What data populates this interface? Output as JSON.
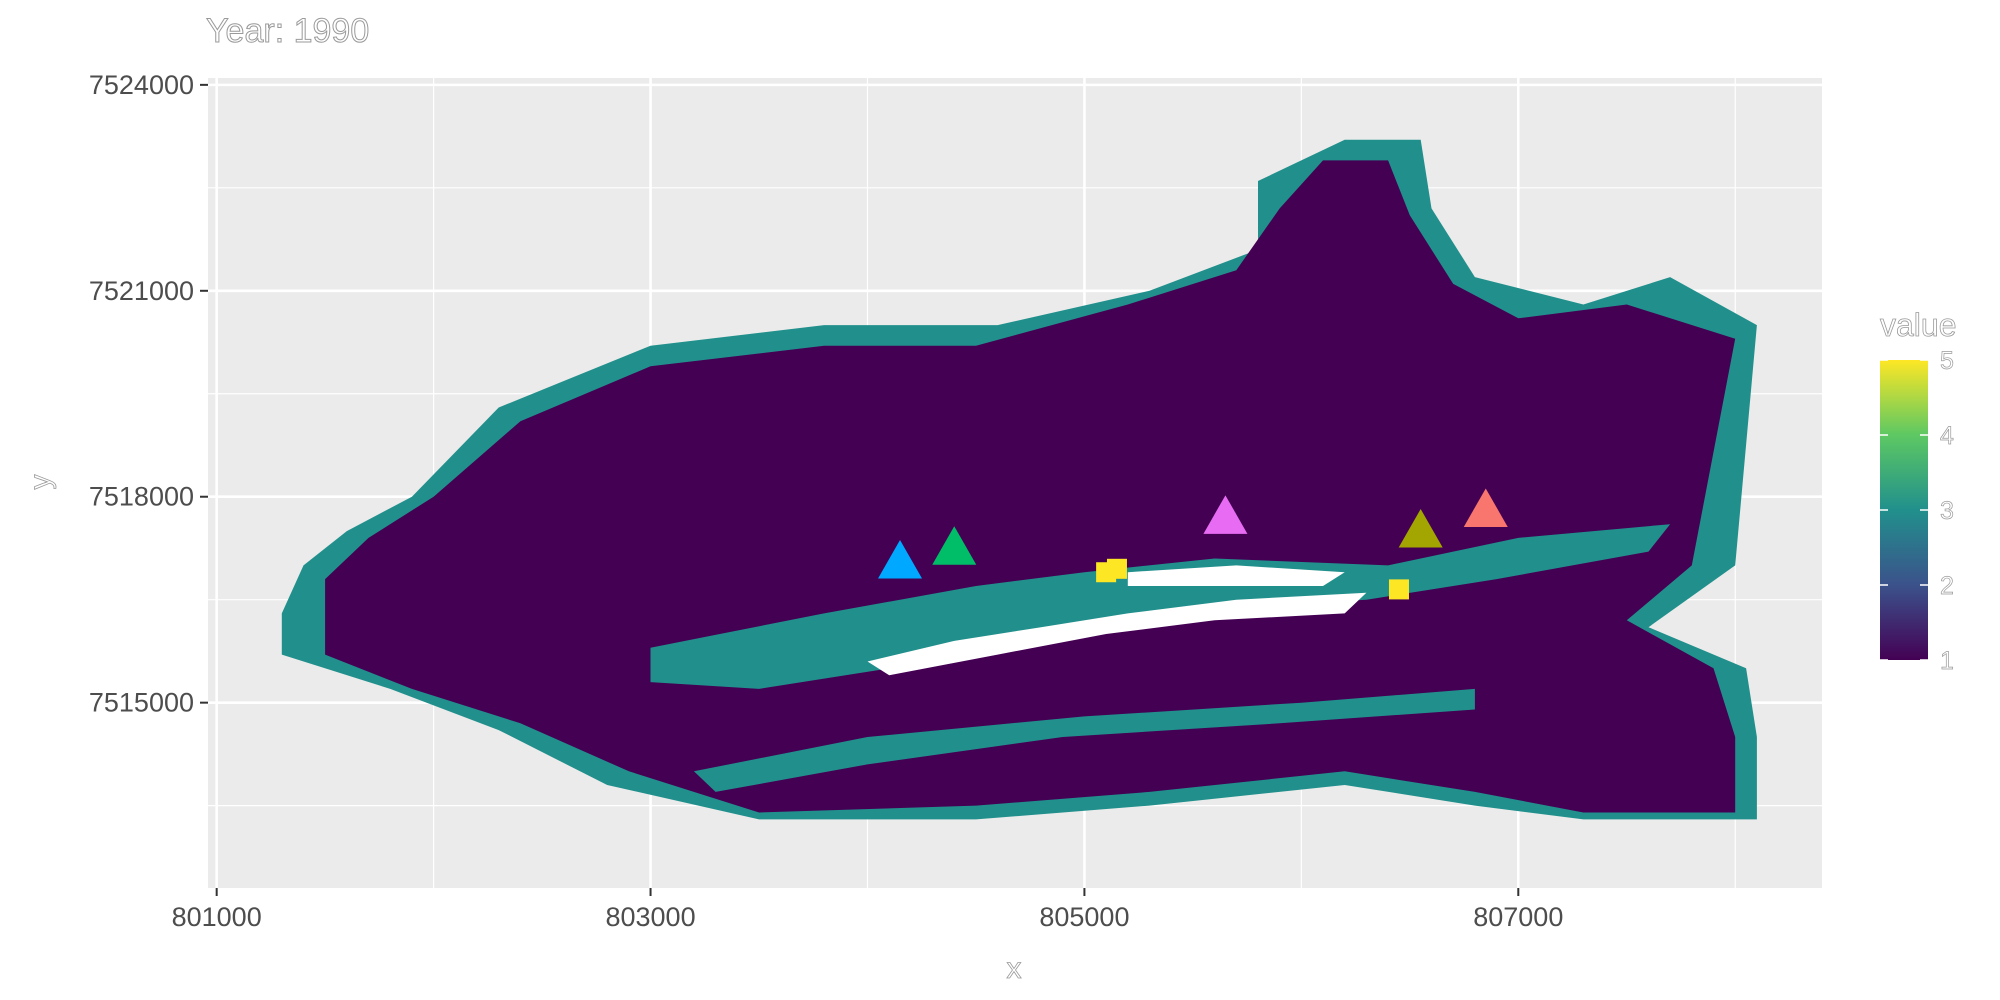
{
  "chart_data": {
    "type": "heatmap",
    "title": "Year: 1990",
    "xlabel": "x",
    "ylabel": "y",
    "xlim": [
      800960,
      808400
    ],
    "ylim": [
      7512300,
      7524100
    ],
    "x_ticks": [
      801000,
      803000,
      805000,
      807000
    ],
    "x_minor": [
      802000,
      804000,
      806000,
      808000
    ],
    "y_ticks": [
      7515000,
      7518000,
      7521000,
      7524000
    ],
    "y_minor": [
      7513500,
      7516500,
      7519500,
      7522500
    ],
    "grid": true,
    "colorscale": {
      "title": "value",
      "min": 1,
      "max": 5,
      "ticks": [
        1,
        2,
        3,
        4,
        5
      ],
      "palette": "viridis",
      "stops": [
        "#440154",
        "#3B528B",
        "#21908C",
        "#5DC863",
        "#FDE725"
      ]
    },
    "legend_position": "right",
    "regions": [
      {
        "value": 3,
        "note": "outer band",
        "polygon": [
          [
            801300,
            7515700
          ],
          [
            801800,
            7515200
          ],
          [
            802300,
            7514600
          ],
          [
            802800,
            7513800
          ],
          [
            803500,
            7513300
          ],
          [
            804500,
            7513300
          ],
          [
            805300,
            7513500
          ],
          [
            806200,
            7513800
          ],
          [
            806800,
            7513500
          ],
          [
            807300,
            7513300
          ],
          [
            808100,
            7513300
          ],
          [
            808100,
            7514500
          ],
          [
            808050,
            7515500
          ],
          [
            807600,
            7516100
          ],
          [
            808000,
            7517000
          ],
          [
            808100,
            7520500
          ],
          [
            807700,
            7521200
          ],
          [
            807300,
            7520800
          ],
          [
            806800,
            7521200
          ],
          [
            806600,
            7522200
          ],
          [
            806550,
            7523200
          ],
          [
            806200,
            7523200
          ],
          [
            805800,
            7522600
          ],
          [
            805800,
            7521600
          ],
          [
            805300,
            7521000
          ],
          [
            804600,
            7520500
          ],
          [
            803800,
            7520500
          ],
          [
            803000,
            7520200
          ],
          [
            802300,
            7519300
          ],
          [
            801900,
            7518000
          ],
          [
            801600,
            7517500
          ],
          [
            801400,
            7517000
          ],
          [
            801300,
            7516300
          ]
        ]
      },
      {
        "value": 1,
        "note": "main body",
        "polygon": [
          [
            801500,
            7515700
          ],
          [
            801900,
            7515200
          ],
          [
            802400,
            7514700
          ],
          [
            802900,
            7514000
          ],
          [
            803500,
            7513400
          ],
          [
            804500,
            7513500
          ],
          [
            805300,
            7513700
          ],
          [
            806200,
            7514000
          ],
          [
            806800,
            7513700
          ],
          [
            807300,
            7513400
          ],
          [
            808000,
            7513400
          ],
          [
            808000,
            7514500
          ],
          [
            807900,
            7515500
          ],
          [
            807500,
            7516200
          ],
          [
            807800,
            7517000
          ],
          [
            808000,
            7520300
          ],
          [
            807500,
            7520800
          ],
          [
            807000,
            7520600
          ],
          [
            806700,
            7521100
          ],
          [
            806500,
            7522100
          ],
          [
            806400,
            7522900
          ],
          [
            806100,
            7522900
          ],
          [
            805900,
            7522200
          ],
          [
            805700,
            7521300
          ],
          [
            805200,
            7520800
          ],
          [
            804500,
            7520200
          ],
          [
            803800,
            7520200
          ],
          [
            803000,
            7519900
          ],
          [
            802400,
            7519100
          ],
          [
            802000,
            7518000
          ],
          [
            801700,
            7517400
          ],
          [
            801500,
            7516800
          ]
        ]
      },
      {
        "value": 3,
        "note": "valley band",
        "polygon": [
          [
            803000,
            7515800
          ],
          [
            803800,
            7516300
          ],
          [
            804500,
            7516700
          ],
          [
            805000,
            7516900
          ],
          [
            805600,
            7517100
          ],
          [
            806400,
            7517000
          ],
          [
            807000,
            7517400
          ],
          [
            807700,
            7517600
          ],
          [
            807600,
            7517200
          ],
          [
            806900,
            7516800
          ],
          [
            806300,
            7516500
          ],
          [
            805700,
            7516400
          ],
          [
            805000,
            7516100
          ],
          [
            804300,
            7515600
          ],
          [
            803500,
            7515200
          ],
          [
            803000,
            7515300
          ]
        ]
      },
      {
        "value": 3,
        "note": "south band",
        "polygon": [
          [
            803200,
            7514000
          ],
          [
            804000,
            7514500
          ],
          [
            805000,
            7514800
          ],
          [
            806000,
            7515000
          ],
          [
            806800,
            7515200
          ],
          [
            806800,
            7514900
          ],
          [
            805900,
            7514700
          ],
          [
            804900,
            7514500
          ],
          [
            804000,
            7514100
          ],
          [
            803300,
            7513700
          ]
        ]
      }
    ],
    "gaps": [
      [
        [
          804000,
          7515600
        ],
        [
          804400,
          7515900
        ],
        [
          804800,
          7516100
        ],
        [
          805200,
          7516300
        ],
        [
          805700,
          7516500
        ],
        [
          806300,
          7516600
        ],
        [
          806200,
          7516300
        ],
        [
          805600,
          7516200
        ],
        [
          805100,
          7516000
        ],
        [
          804600,
          7515700
        ],
        [
          804100,
          7515400
        ]
      ],
      [
        [
          805200,
          7516900
        ],
        [
          805700,
          7517000
        ],
        [
          806200,
          7516900
        ],
        [
          806100,
          7516700
        ],
        [
          805600,
          7516700
        ],
        [
          805200,
          7516700
        ]
      ]
    ],
    "small_patches": [
      {
        "value": 5,
        "x": 805100,
        "y": 7516900
      },
      {
        "value": 5,
        "x": 805150,
        "y": 7516950
      },
      {
        "value": 5,
        "x": 806450,
        "y": 7516650
      }
    ],
    "markers": [
      {
        "shape": "triangle",
        "x": 804150,
        "y": 7517050,
        "color": "#00A9FF"
      },
      {
        "shape": "triangle",
        "x": 804400,
        "y": 7517250,
        "color": "#00BE67"
      },
      {
        "shape": "triangle",
        "x": 805650,
        "y": 7517700,
        "color": "#E86CF3"
      },
      {
        "shape": "triangle",
        "x": 806550,
        "y": 7517500,
        "color": "#A3A500"
      },
      {
        "shape": "triangle",
        "x": 806850,
        "y": 7517800,
        "color": "#F8766D"
      }
    ]
  }
}
